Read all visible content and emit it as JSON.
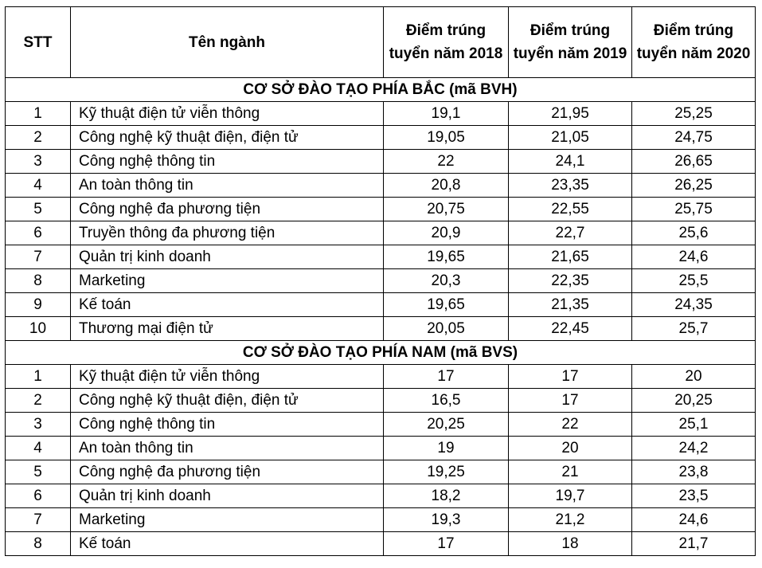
{
  "header": {
    "stt": "STT",
    "name": "Tên ngành",
    "y2018": "Điểm trúng tuyển năm 2018",
    "y2019": "Điểm trúng tuyển năm 2019",
    "y2020": "Điểm trúng tuyển năm 2020"
  },
  "sections": [
    {
      "title": "CƠ SỞ ĐÀO TẠO PHÍA BẮC (mã BVH)",
      "rows": [
        {
          "stt": "1",
          "name": "Kỹ thuật điện tử viễn thông",
          "y2018": "19,1",
          "y2019": "21,95",
          "y2020": "25,25"
        },
        {
          "stt": "2",
          "name": "Công nghệ kỹ thuật điện, điện tử",
          "y2018": "19,05",
          "y2019": "21,05",
          "y2020": "24,75"
        },
        {
          "stt": "3",
          "name": "Công nghệ thông tin",
          "y2018": "22",
          "y2019": "24,1",
          "y2020": "26,65"
        },
        {
          "stt": "4",
          "name": "An toàn thông tin",
          "y2018": "20,8",
          "y2019": "23,35",
          "y2020": "26,25"
        },
        {
          "stt": "5",
          "name": "Công nghệ đa phương tiện",
          "y2018": "20,75",
          "y2019": "22,55",
          "y2020": "25,75"
        },
        {
          "stt": "6",
          "name": "Truyền thông đa phương tiện",
          "y2018": "20,9",
          "y2019": "22,7",
          "y2020": "25,6"
        },
        {
          "stt": "7",
          "name": "Quản trị kinh doanh",
          "y2018": "19,65",
          "y2019": "21,65",
          "y2020": "24,6"
        },
        {
          "stt": "8",
          "name": "Marketing",
          "y2018": "20,3",
          "y2019": "22,35",
          "y2020": "25,5"
        },
        {
          "stt": "9",
          "name": "Kế toán",
          "y2018": "19,65",
          "y2019": "21,35",
          "y2020": "24,35"
        },
        {
          "stt": "10",
          "name": "Thương mại điện tử",
          "y2018": "20,05",
          "y2019": "22,45",
          "y2020": "25,7"
        }
      ]
    },
    {
      "title": "CƠ SỞ ĐÀO TẠO PHÍA NAM (mã BVS)",
      "rows": [
        {
          "stt": "1",
          "name": "Kỹ thuật điện tử viễn thông",
          "y2018": "17",
          "y2019": "17",
          "y2020": "20"
        },
        {
          "stt": "2",
          "name": "Công nghệ kỹ thuật điện, điện tử",
          "y2018": "16,5",
          "y2019": "17",
          "y2020": "20,25"
        },
        {
          "stt": "3",
          "name": "Công nghệ thông tin",
          "y2018": "20,25",
          "y2019": "22",
          "y2020": "25,1"
        },
        {
          "stt": "4",
          "name": "An toàn thông tin",
          "y2018": "19",
          "y2019": "20",
          "y2020": "24,2"
        },
        {
          "stt": "5",
          "name": "Công nghệ đa phương tiện",
          "y2018": "19,25",
          "y2019": "21",
          "y2020": "23,8"
        },
        {
          "stt": "6",
          "name": "Quản trị kinh doanh",
          "y2018": "18,2",
          "y2019": "19,7",
          "y2020": "23,5"
        },
        {
          "stt": "7",
          "name": "Marketing",
          "y2018": "19,3",
          "y2019": "21,2",
          "y2020": "24,6"
        },
        {
          "stt": "8",
          "name": "Kế toán",
          "y2018": "17",
          "y2019": "18",
          "y2020": "21,7"
        }
      ]
    }
  ]
}
